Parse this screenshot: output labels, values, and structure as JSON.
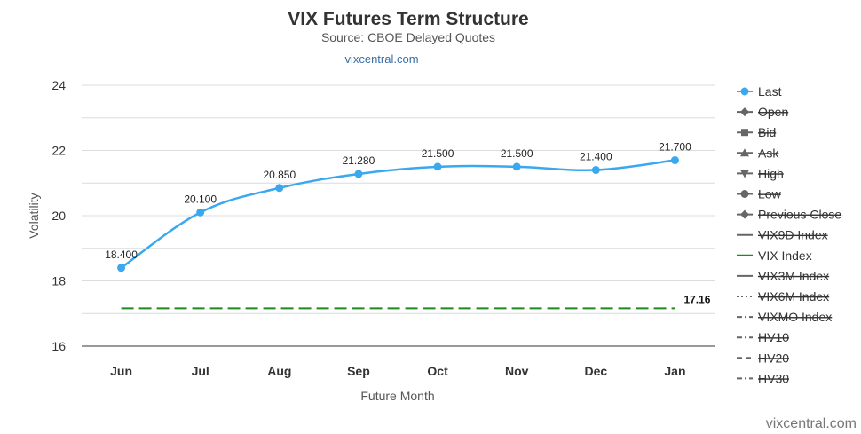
{
  "chart_data": {
    "type": "line",
    "title": "VIX Futures Term Structure",
    "subtitle": "Source: CBOE Delayed Quotes",
    "link": "vixcentral.com",
    "credit": "vixcentral.com",
    "xlabel": "Future Month",
    "ylabel": "Volatility",
    "categories": [
      "Jun",
      "Jul",
      "Aug",
      "Sep",
      "Oct",
      "Nov",
      "Dec",
      "Jan"
    ],
    "ylim": [
      16,
      24
    ],
    "yticks": [
      "16",
      "18",
      "20",
      "22",
      "24"
    ],
    "grid": true,
    "legend_position": "right",
    "series": [
      {
        "name": "Last",
        "color": "#3aa8ef",
        "values": [
          18.4,
          20.1,
          20.85,
          21.28,
          21.5,
          21.5,
          21.4,
          21.7
        ],
        "labels": [
          "18.400",
          "20.100",
          "20.850",
          "21.280",
          "21.500",
          "21.500",
          "21.400",
          "21.700"
        ]
      },
      {
        "name": "VIX Index",
        "color": "#1f8a1f",
        "style": "dashed",
        "value": 17.16,
        "label": "17.16"
      }
    ],
    "legend": [
      {
        "name": "Last",
        "symbol": "circle",
        "enabled": true,
        "color": "#3aa8ef"
      },
      {
        "name": "Open",
        "symbol": "diamond",
        "enabled": false,
        "color": "#666666"
      },
      {
        "name": "Bid",
        "symbol": "square",
        "enabled": false,
        "color": "#666666"
      },
      {
        "name": "Ask",
        "symbol": "triangle",
        "enabled": false,
        "color": "#666666"
      },
      {
        "name": "High",
        "symbol": "triangle-down",
        "enabled": false,
        "color": "#666666"
      },
      {
        "name": "Low",
        "symbol": "circle",
        "enabled": false,
        "color": "#666666"
      },
      {
        "name": "Previous Close",
        "symbol": "diamond",
        "enabled": false,
        "color": "#666666"
      },
      {
        "name": "VIX9D Index",
        "symbol": "solid",
        "enabled": false,
        "color": "#666666"
      },
      {
        "name": "VIX Index",
        "symbol": "solid",
        "enabled": true,
        "color": "#1f8a1f"
      },
      {
        "name": "VIX3M Index",
        "symbol": "solid",
        "enabled": false,
        "color": "#666666"
      },
      {
        "name": "VIX6M Index",
        "symbol": "dotted",
        "enabled": false,
        "color": "#666666"
      },
      {
        "name": "VIXMO Index",
        "symbol": "dashdot",
        "enabled": false,
        "color": "#666666"
      },
      {
        "name": "HV10",
        "symbol": "dashdot",
        "enabled": false,
        "color": "#666666"
      },
      {
        "name": "HV20",
        "symbol": "dashed",
        "enabled": false,
        "color": "#666666"
      },
      {
        "name": "HV30",
        "symbol": "dashdot",
        "enabled": false,
        "color": "#666666"
      }
    ]
  }
}
